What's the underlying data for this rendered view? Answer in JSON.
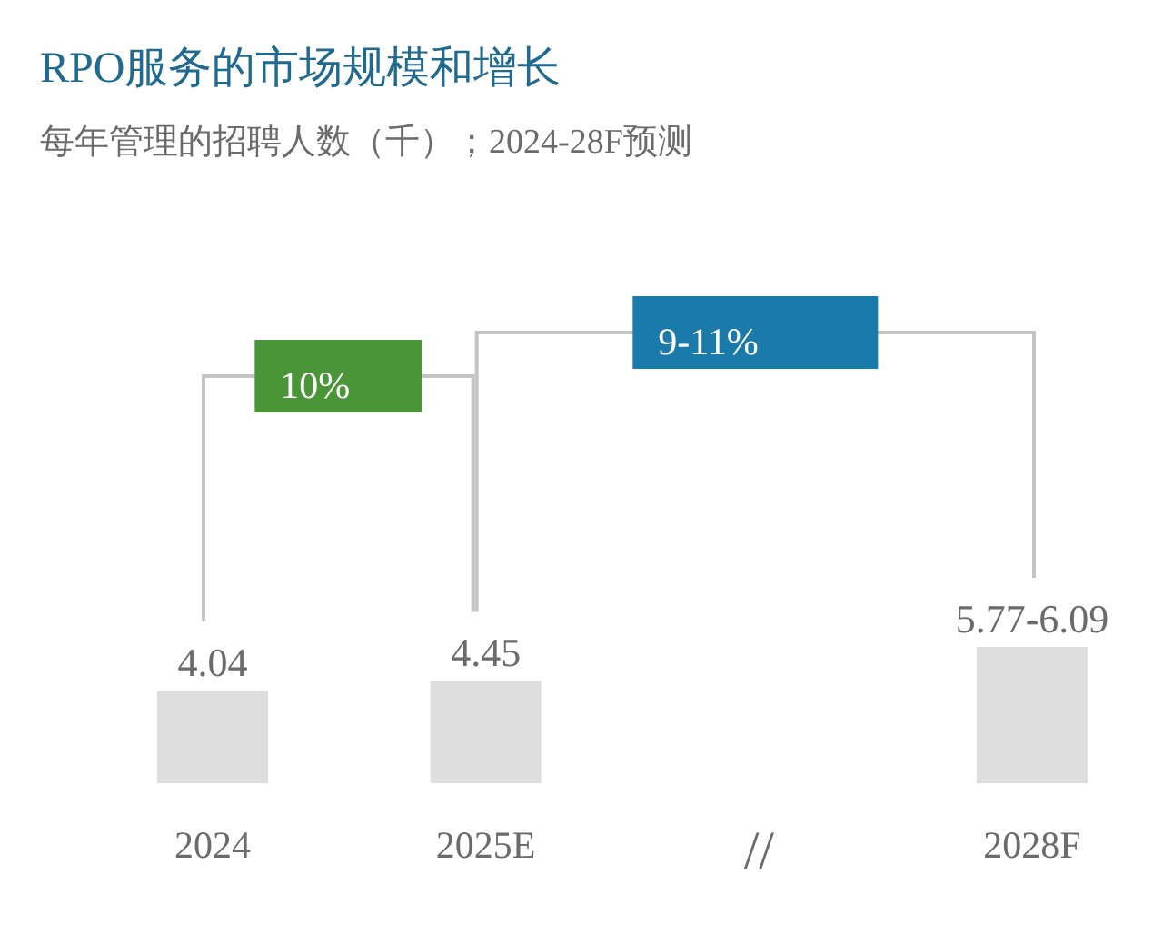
{
  "chart_data": {
    "type": "bar",
    "title": "RPO服务的市场规模和增长",
    "subtitle": "每年管理的招聘人数（千）；2024-28F预测",
    "categories": [
      "2024",
      "2025E",
      "//",
      "2028F"
    ],
    "values": [
      4.04,
      4.45,
      null,
      5.93
    ],
    "value_labels": [
      "4.04",
      "4.45",
      null,
      "5.77-6.09"
    ],
    "color": "#dedede",
    "annotations": [
      "10%",
      "9-11%"
    ]
  }
}
